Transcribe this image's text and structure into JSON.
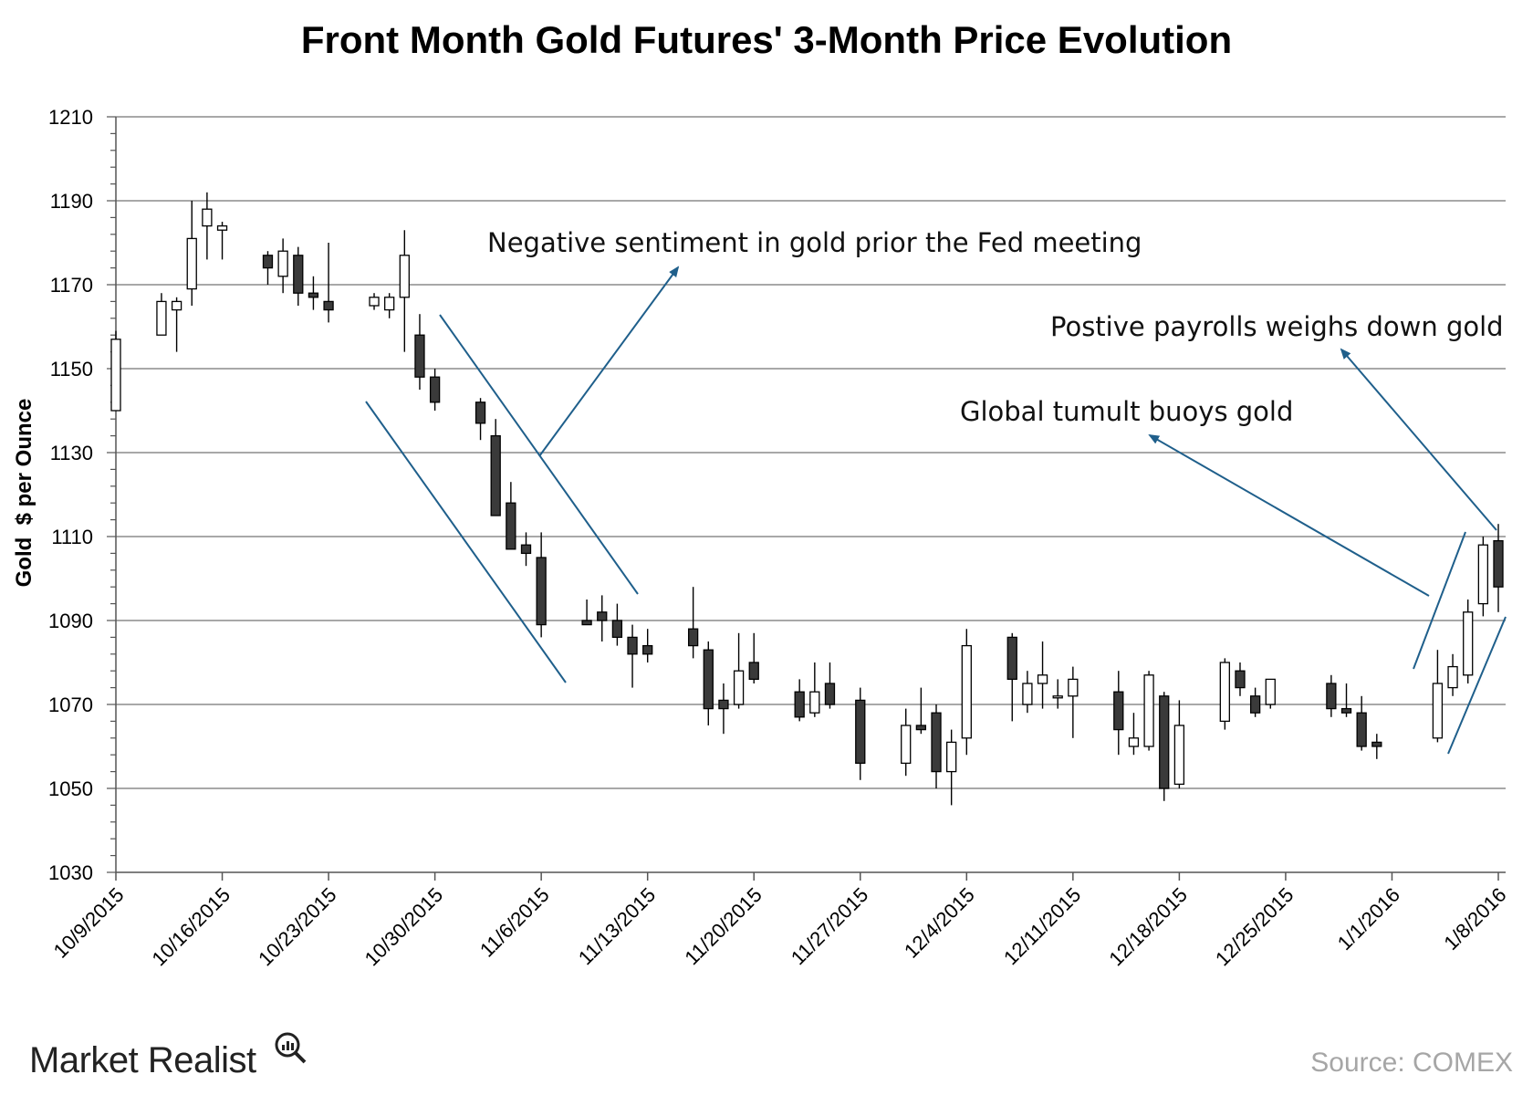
{
  "chart_data": {
    "type": "candlestick",
    "title": "Front Month Gold Futures' 3-Month Price Evolution",
    "ylabel": "Gold  $ per Ounce",
    "xlabel": "",
    "ylim": [
      1030,
      1210
    ],
    "yticks": [
      1030,
      1050,
      1070,
      1090,
      1110,
      1130,
      1150,
      1170,
      1190,
      1210
    ],
    "x_ticks": [
      "10/9/2015",
      "10/16/2015",
      "10/23/2015",
      "10/30/2015",
      "11/6/2015",
      "11/13/2015",
      "11/20/2015",
      "11/27/2015",
      "12/4/2015",
      "12/11/2015",
      "12/18/2015",
      "12/25/2015",
      "1/1/2016",
      "1/8/2016"
    ],
    "grid": true,
    "candles": [
      {
        "date": "10/9/2015",
        "open": 1140,
        "high": 1159,
        "low": 1140,
        "close": 1157
      },
      {
        "date": "10/12/2015",
        "open": 1158,
        "high": 1168,
        "low": 1158,
        "close": 1166
      },
      {
        "date": "10/13/2015",
        "open": 1164,
        "high": 1167,
        "low": 1154,
        "close": 1166
      },
      {
        "date": "10/14/2015",
        "open": 1169,
        "high": 1190,
        "low": 1165,
        "close": 1181
      },
      {
        "date": "10/15/2015",
        "open": 1184,
        "high": 1192,
        "low": 1176,
        "close": 1188
      },
      {
        "date": "10/16/2015",
        "open": 1183,
        "high": 1185,
        "low": 1176,
        "close": 1184
      },
      {
        "date": "10/19/2015",
        "open": 1177,
        "high": 1178,
        "low": 1170,
        "close": 1174
      },
      {
        "date": "10/20/2015",
        "open": 1172,
        "high": 1181,
        "low": 1168,
        "close": 1178
      },
      {
        "date": "10/21/2015",
        "open": 1177,
        "high": 1179,
        "low": 1165,
        "close": 1168
      },
      {
        "date": "10/22/2015",
        "open": 1168,
        "high": 1172,
        "low": 1164,
        "close": 1167
      },
      {
        "date": "10/23/2015",
        "open": 1166,
        "high": 1180,
        "low": 1161,
        "close": 1164
      },
      {
        "date": "10/26/2015",
        "open": 1165,
        "high": 1168,
        "low": 1164,
        "close": 1167
      },
      {
        "date": "10/27/2015",
        "open": 1164,
        "high": 1168,
        "low": 1162,
        "close": 1167
      },
      {
        "date": "10/28/2015",
        "open": 1167,
        "high": 1183,
        "low": 1154,
        "close": 1177
      },
      {
        "date": "10/29/2015",
        "open": 1158,
        "high": 1163,
        "low": 1145,
        "close": 1148
      },
      {
        "date": "10/30/2015",
        "open": 1148,
        "high": 1150,
        "low": 1140,
        "close": 1142
      },
      {
        "date": "11/2/2015",
        "open": 1142,
        "high": 1143,
        "low": 1133,
        "close": 1137
      },
      {
        "date": "11/3/2015",
        "open": 1134,
        "high": 1138,
        "low": 1115,
        "close": 1115
      },
      {
        "date": "11/4/2015",
        "open": 1118,
        "high": 1123,
        "low": 1107,
        "close": 1107
      },
      {
        "date": "11/5/2015",
        "open": 1108,
        "high": 1111,
        "low": 1103,
        "close": 1106
      },
      {
        "date": "11/6/2015",
        "open": 1105,
        "high": 1111,
        "low": 1086,
        "close": 1089
      },
      {
        "date": "11/9/2015",
        "open": 1090,
        "high": 1095,
        "low": 1089,
        "close": 1089
      },
      {
        "date": "11/10/2015",
        "open": 1092,
        "high": 1096,
        "low": 1085,
        "close": 1090
      },
      {
        "date": "11/11/2015",
        "open": 1090,
        "high": 1094,
        "low": 1084,
        "close": 1086
      },
      {
        "date": "11/12/2015",
        "open": 1086,
        "high": 1089,
        "low": 1074,
        "close": 1082
      },
      {
        "date": "11/13/2015",
        "open": 1084,
        "high": 1088,
        "low": 1080,
        "close": 1082
      },
      {
        "date": "11/16/2015",
        "open": 1088,
        "high": 1098,
        "low": 1081,
        "close": 1084
      },
      {
        "date": "11/17/2015",
        "open": 1083,
        "high": 1085,
        "low": 1065,
        "close": 1069
      },
      {
        "date": "11/18/2015",
        "open": 1071,
        "high": 1075,
        "low": 1063,
        "close": 1069
      },
      {
        "date": "11/19/2015",
        "open": 1070,
        "high": 1087,
        "low": 1069,
        "close": 1078
      },
      {
        "date": "11/20/2015",
        "open": 1080,
        "high": 1087,
        "low": 1075,
        "close": 1076
      },
      {
        "date": "11/23/2015",
        "open": 1073,
        "high": 1076,
        "low": 1066,
        "close": 1067
      },
      {
        "date": "11/24/2015",
        "open": 1068,
        "high": 1080,
        "low": 1067,
        "close": 1073
      },
      {
        "date": "11/25/2015",
        "open": 1075,
        "high": 1080,
        "low": 1069,
        "close": 1070
      },
      {
        "date": "11/27/2015",
        "open": 1071,
        "high": 1074,
        "low": 1052,
        "close": 1056
      },
      {
        "date": "11/30/2015",
        "open": 1056,
        "high": 1069,
        "low": 1053,
        "close": 1065
      },
      {
        "date": "12/1/2015",
        "open": 1065,
        "high": 1074,
        "low": 1063,
        "close": 1064
      },
      {
        "date": "12/2/2015",
        "open": 1068,
        "high": 1070,
        "low": 1050,
        "close": 1054
      },
      {
        "date": "12/3/2015",
        "open": 1054,
        "high": 1064,
        "low": 1046,
        "close": 1061
      },
      {
        "date": "12/4/2015",
        "open": 1062,
        "high": 1088,
        "low": 1058,
        "close": 1084
      },
      {
        "date": "12/7/2015",
        "open": 1086,
        "high": 1087,
        "low": 1066,
        "close": 1076
      },
      {
        "date": "12/8/2015",
        "open": 1070,
        "high": 1078,
        "low": 1068,
        "close": 1075
      },
      {
        "date": "12/9/2015",
        "open": 1075,
        "high": 1085,
        "low": 1069,
        "close": 1077
      },
      {
        "date": "12/10/2015",
        "open": 1072,
        "high": 1076,
        "low": 1069,
        "close": 1072
      },
      {
        "date": "12/11/2015",
        "open": 1072,
        "high": 1079,
        "low": 1062,
        "close": 1076
      },
      {
        "date": "12/14/2015",
        "open": 1073,
        "high": 1078,
        "low": 1058,
        "close": 1064
      },
      {
        "date": "12/15/2015",
        "open": 1060,
        "high": 1068,
        "low": 1058,
        "close": 1062
      },
      {
        "date": "12/16/2015",
        "open": 1060,
        "high": 1078,
        "low": 1059,
        "close": 1077
      },
      {
        "date": "12/17/2015",
        "open": 1072,
        "high": 1073,
        "low": 1047,
        "close": 1050
      },
      {
        "date": "12/18/2015",
        "open": 1051,
        "high": 1071,
        "low": 1050,
        "close": 1065
      },
      {
        "date": "12/21/2015",
        "open": 1066,
        "high": 1081,
        "low": 1064,
        "close": 1080
      },
      {
        "date": "12/22/2015",
        "open": 1078,
        "high": 1080,
        "low": 1072,
        "close": 1074
      },
      {
        "date": "12/23/2015",
        "open": 1072,
        "high": 1074,
        "low": 1067,
        "close": 1068
      },
      {
        "date": "12/24/2015",
        "open": 1070,
        "high": 1076,
        "low": 1069,
        "close": 1076
      },
      {
        "date": "12/28/2015",
        "open": 1075,
        "high": 1077,
        "low": 1067,
        "close": 1069
      },
      {
        "date": "12/29/2015",
        "open": 1069,
        "high": 1075,
        "low": 1067,
        "close": 1068
      },
      {
        "date": "12/30/2015",
        "open": 1068,
        "high": 1072,
        "low": 1059,
        "close": 1060
      },
      {
        "date": "12/31/2015",
        "open": 1061,
        "high": 1063,
        "low": 1057,
        "close": 1060
      },
      {
        "date": "1/4/2016",
        "open": 1062,
        "high": 1083,
        "low": 1061,
        "close": 1075
      },
      {
        "date": "1/5/2016",
        "open": 1074,
        "high": 1082,
        "low": 1072,
        "close": 1079
      },
      {
        "date": "1/6/2016",
        "open": 1077,
        "high": 1095,
        "low": 1075,
        "close": 1092
      },
      {
        "date": "1/7/2016",
        "open": 1094,
        "high": 1110,
        "low": 1091,
        "close": 1108
      },
      {
        "date": "1/8/2016",
        "open": 1109,
        "high": 1113,
        "low": 1092,
        "close": 1098
      }
    ],
    "annotations": [
      "Negative sentiment in gold prior the Fed meeting",
      "Postive payrolls weighs down gold",
      "Global tumult buoys gold"
    ],
    "colors": {
      "up_fill": "#ffffff",
      "down_fill": "#3a3a3a",
      "stroke": "#000000",
      "grid": "#8c8c8c",
      "arrow": "#1f5f8b"
    }
  },
  "branding": {
    "logo_text": "Market Realist",
    "source": "Source: COMEX"
  }
}
